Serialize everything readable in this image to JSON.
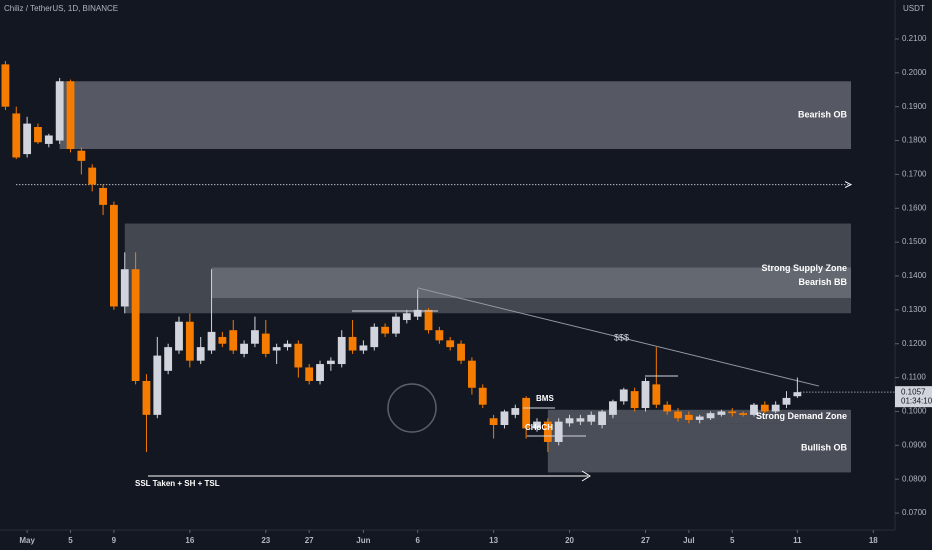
{
  "chart_data": {
    "type": "candlestick",
    "title": "Chiliz / TetherUS, 1D, BINANCE",
    "y_axis_label": "USDT",
    "x": [
      -2,
      -1,
      0,
      1,
      2,
      3,
      4,
      5,
      6,
      7,
      8,
      9,
      10,
      11,
      12,
      13,
      14,
      15,
      16,
      17,
      18,
      19,
      20,
      21,
      22,
      23,
      24,
      25,
      26,
      27,
      28,
      29,
      30,
      31,
      32,
      33,
      34,
      35,
      36,
      37,
      38,
      39,
      40,
      41,
      42,
      43,
      44,
      45,
      46,
      47,
      48,
      49,
      50,
      51,
      52,
      53,
      54,
      55,
      56,
      57,
      58,
      59,
      60,
      61,
      62,
      63,
      64,
      65,
      66,
      67,
      68,
      69,
      70,
      71
    ],
    "open": [
      0.2025,
      0.188,
      0.176,
      0.184,
      0.179,
      0.18,
      0.1975,
      0.177,
      0.172,
      0.166,
      0.161,
      0.131,
      0.142,
      0.109,
      0.099,
      0.112,
      0.118,
      0.1265,
      0.115,
      0.118,
      0.122,
      0.124,
      0.117,
      0.12,
      0.123,
      0.118,
      0.119,
      0.12,
      0.113,
      0.109,
      0.114,
      0.114,
      0.122,
      0.118,
      0.119,
      0.125,
      0.123,
      0.127,
      0.128,
      0.13,
      0.124,
      0.121,
      0.12,
      0.115,
      0.107,
      0.098,
      0.096,
      0.099,
      0.104,
      0.095,
      0.097,
      0.091,
      0.0965,
      0.097,
      0.097,
      0.096,
      0.099,
      0.103,
      0.106,
      0.101,
      0.108,
      0.102,
      0.1,
      0.099,
      0.0975,
      0.098,
      0.099,
      0.1,
      0.0995,
      0.099,
      0.102,
      0.1,
      0.102,
      0.1045
    ],
    "high": [
      0.2035,
      0.19,
      0.187,
      0.185,
      0.182,
      0.1985,
      0.198,
      0.178,
      0.173,
      0.167,
      0.162,
      0.147,
      0.147,
      0.111,
      0.122,
      0.12,
      0.128,
      0.129,
      0.122,
      0.142,
      0.1235,
      0.127,
      0.121,
      0.128,
      0.127,
      0.12,
      0.121,
      0.121,
      0.114,
      0.115,
      0.116,
      0.124,
      0.127,
      0.121,
      0.126,
      0.126,
      0.129,
      0.13,
      0.136,
      0.1305,
      0.125,
      0.122,
      0.121,
      0.116,
      0.108,
      0.099,
      0.1005,
      0.102,
      0.1045,
      0.098,
      0.098,
      0.098,
      0.099,
      0.099,
      0.1,
      0.1005,
      0.1035,
      0.107,
      0.107,
      0.11,
      0.119,
      0.103,
      0.101,
      0.1,
      0.099,
      0.1,
      0.1005,
      0.101,
      0.1,
      0.1025,
      0.103,
      0.103,
      0.106,
      0.11
    ],
    "low": [
      0.189,
      0.1745,
      0.175,
      0.179,
      0.178,
      0.179,
      0.1765,
      0.17,
      0.165,
      0.158,
      0.13,
      0.129,
      0.108,
      0.088,
      0.098,
      0.111,
      0.117,
      0.113,
      0.114,
      0.117,
      0.119,
      0.117,
      0.116,
      0.119,
      0.116,
      0.114,
      0.118,
      0.11,
      0.108,
      0.108,
      0.112,
      0.113,
      0.117,
      0.117,
      0.118,
      0.122,
      0.122,
      0.126,
      0.127,
      0.123,
      0.12,
      0.118,
      0.114,
      0.105,
      0.101,
      0.092,
      0.095,
      0.098,
      0.092,
      0.094,
      0.088,
      0.09,
      0.0955,
      0.096,
      0.096,
      0.095,
      0.098,
      0.102,
      0.1,
      0.1,
      0.101,
      0.099,
      0.097,
      0.0965,
      0.0965,
      0.0975,
      0.0985,
      0.0985,
      0.0985,
      0.0985,
      0.0995,
      0.0995,
      0.101,
      0.104
    ],
    "close": [
      0.19,
      0.175,
      0.185,
      0.1795,
      0.1815,
      0.1975,
      0.1775,
      0.174,
      0.167,
      0.161,
      0.131,
      0.142,
      0.109,
      0.099,
      0.1165,
      0.119,
      0.1265,
      0.115,
      0.119,
      0.1235,
      0.12,
      0.118,
      0.12,
      0.124,
      0.117,
      0.119,
      0.12,
      0.113,
      0.109,
      0.114,
      0.115,
      0.122,
      0.118,
      0.1195,
      0.125,
      0.123,
      0.128,
      0.129,
      0.13,
      0.124,
      0.121,
      0.119,
      0.115,
      0.107,
      0.102,
      0.096,
      0.1,
      0.101,
      0.095,
      0.097,
      0.091,
      0.097,
      0.098,
      0.098,
      0.099,
      0.1,
      0.103,
      0.1065,
      0.101,
      0.109,
      0.102,
      0.1,
      0.098,
      0.0975,
      0.0985,
      0.0995,
      0.1,
      0.0995,
      0.099,
      0.102,
      0.1,
      0.102,
      0.104,
      0.1057
    ],
    "up_color": "#d1d4dc",
    "down_color": "#f57c00",
    "xlim": [
      -2.5,
      80
    ],
    "ylim": [
      0.065,
      0.2215
    ],
    "yticks": [
      {
        "value": 0.07,
        "label": "0.0700"
      },
      {
        "value": 0.08,
        "label": "0.0800"
      },
      {
        "value": 0.09,
        "label": "0.0900"
      },
      {
        "value": 0.1,
        "label": "0.1000"
      },
      {
        "value": 0.11,
        "label": "0.1100"
      },
      {
        "value": 0.12,
        "label": "0.1200"
      },
      {
        "value": 0.13,
        "label": "0.1300"
      },
      {
        "value": 0.14,
        "label": "0.1400"
      },
      {
        "value": 0.15,
        "label": "0.1500"
      },
      {
        "value": 0.16,
        "label": "0.1600"
      },
      {
        "value": 0.17,
        "label": "0.1700"
      },
      {
        "value": 0.18,
        "label": "0.1800"
      },
      {
        "value": 0.19,
        "label": "0.1900"
      },
      {
        "value": 0.2,
        "label": "0.2000"
      },
      {
        "value": 0.21,
        "label": "0.2100"
      }
    ],
    "xticks": [
      {
        "value": 0,
        "label": "May"
      },
      {
        "value": 4,
        "label": "5"
      },
      {
        "value": 8,
        "label": "9"
      },
      {
        "value": 15,
        "label": "16"
      },
      {
        "value": 22,
        "label": "23"
      },
      {
        "value": 26,
        "label": "27"
      },
      {
        "value": 31,
        "label": "Jun"
      },
      {
        "value": 36,
        "label": "6"
      },
      {
        "value": 43,
        "label": "13"
      },
      {
        "value": 50,
        "label": "20"
      },
      {
        "value": 57,
        "label": "27"
      },
      {
        "value": 61,
        "label": "Jul"
      },
      {
        "value": 65,
        "label": "5"
      },
      {
        "value": 71,
        "label": "11"
      },
      {
        "value": 78,
        "label": "18"
      }
    ],
    "zones": [
      {
        "label": "Bearish OB",
        "top": 0.1975,
        "bottom": 0.1775,
        "start": 3,
        "shade": 0.42
      },
      {
        "label": "Strong Supply Zone",
        "top": 0.1555,
        "bottom": 0.129,
        "start": 9,
        "shade": 0.3
      },
      {
        "label": "Bearish BB",
        "top": 0.1425,
        "bottom": 0.1335,
        "start": 17,
        "shade": 0.3
      },
      {
        "label": "Strong Demand Zone",
        "top": 0.1005,
        "bottom": 0.0965,
        "start": 48,
        "shade": 0.35
      },
      {
        "label": "Bullish OB",
        "top": 0.0965,
        "bottom": 0.082,
        "start": 48,
        "shade": 0.35
      }
    ],
    "dotted_level": {
      "value": 0.167,
      "start": -1
    },
    "trendline": {
      "x": [
        36,
        73
      ],
      "y": [
        0.1365,
        0.1075
      ]
    },
    "annotations": [
      "$$$",
      "BMS",
      "CHoCH",
      "SSL Taken + SH + TSL"
    ],
    "last_price": {
      "value": 0.1057,
      "label": "0.1057"
    },
    "countdown": "01:34:10"
  }
}
